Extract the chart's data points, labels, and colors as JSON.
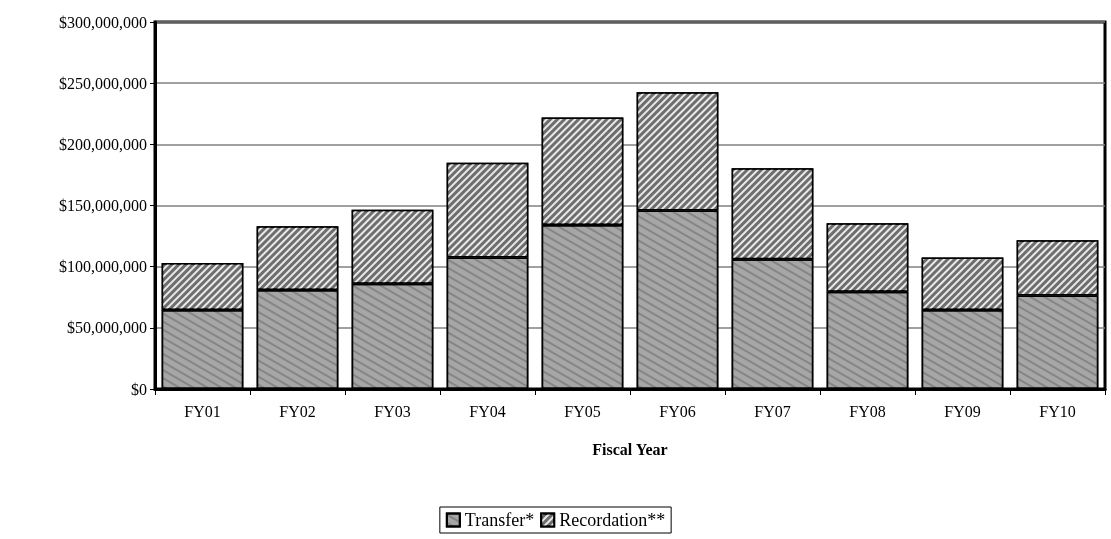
{
  "chart_data": {
    "type": "bar",
    "stacked": true,
    "xlabel": "Fiscal Year",
    "categories": [
      "FY01",
      "FY02",
      "FY03",
      "FY04",
      "FY05",
      "FY06",
      "FY07",
      "FY08",
      "FY09",
      "FY10"
    ],
    "series": [
      {
        "name": "Transfer*",
        "color": "#a6a6a6",
        "values": [
          64500000,
          81000000,
          86000000,
          107500000,
          134000000,
          146000000,
          106000000,
          79500000,
          64500000,
          76500000
        ]
      },
      {
        "name": "Recordation**",
        "color": "#6e6e6e",
        "values": [
          38500000,
          52000000,
          60500000,
          77500000,
          88000000,
          96500000,
          74500000,
          56000000,
          43000000,
          45000000
        ]
      }
    ],
    "ylim": [
      0,
      300000000
    ],
    "yticks": [
      {
        "value": 0,
        "label": "$0"
      },
      {
        "value": 50000000,
        "label": "$50,000,000"
      },
      {
        "value": 100000000,
        "label": "$100,000,000"
      },
      {
        "value": 150000000,
        "label": "$150,000,000"
      },
      {
        "value": 200000000,
        "label": "$200,000,000"
      },
      {
        "value": 250000000,
        "label": "$250,000,000"
      },
      {
        "value": 300000000,
        "label": "$300,000,000"
      }
    ],
    "grid": "y",
    "legend": "bottom"
  }
}
